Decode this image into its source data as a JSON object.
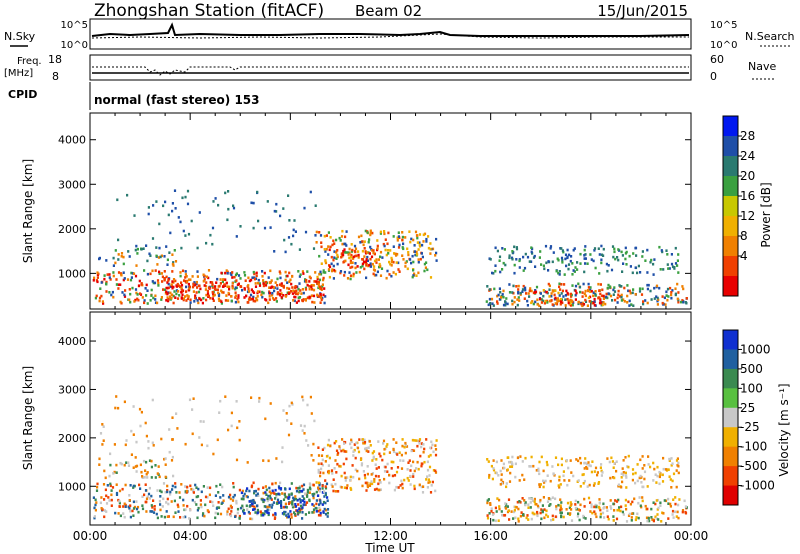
{
  "header": {
    "station": "Zhongshan Station (fitACF)",
    "beam": "Beam 02",
    "date": "15/Jun/2015"
  },
  "status_panels": {
    "nsky_label": "N.Sky",
    "nsearch_label": "N.Search",
    "nsky_ticks": [
      "10^5",
      "10^0"
    ],
    "nsearch_ticks": [
      "10^5",
      "10^0"
    ],
    "freq_label": "Freq.",
    "freq_unit": "[MHz]",
    "freq_ticks": [
      "18",
      "8"
    ],
    "nave_label": "Nave",
    "nave_ticks": [
      "60",
      "0"
    ],
    "cpid_label": "CPID",
    "cpid_value": "normal (fast stereo) 153"
  },
  "chart_data": [
    {
      "type": "heatmap",
      "name": "power",
      "ylabel": "Slant Range [km]",
      "ylim": [
        200,
        4600
      ],
      "yticks": [
        "1000",
        "2000",
        "3000",
        "4000"
      ],
      "xlim_hours": [
        0,
        24
      ],
      "colorbar_label": "Power [dB]",
      "colorbar_ticks": [
        "4",
        "8",
        "12",
        "16",
        "20",
        "24",
        "28"
      ],
      "colorbar_colors": [
        "#0018f0",
        "#1f4fa8",
        "#2a7a70",
        "#3aa040",
        "#c8c800",
        "#f0b000",
        "#f08000",
        "#f04000",
        "#e80000"
      ]
    },
    {
      "type": "heatmap",
      "name": "velocity",
      "ylabel": "Slant Range [km]",
      "ylim": [
        200,
        4600
      ],
      "yticks": [
        "1000",
        "2000",
        "3000",
        "4000"
      ],
      "xlabel": "Time UT",
      "xticks": [
        "00:00",
        "04:00",
        "08:00",
        "12:00",
        "16:00",
        "20:00",
        "00:00"
      ],
      "colorbar_label": "Velocity [m s⁻¹]",
      "colorbar_ticks": [
        "1000",
        "500",
        "100",
        "25",
        "-25",
        "-100",
        "-500",
        "-1000"
      ],
      "colorbar_colors": [
        "#1030d0",
        "#2060a0",
        "#3a8a50",
        "#58c040",
        "#c8c8c8",
        "#f0b000",
        "#f08000",
        "#f04000",
        "#e00000"
      ]
    }
  ]
}
